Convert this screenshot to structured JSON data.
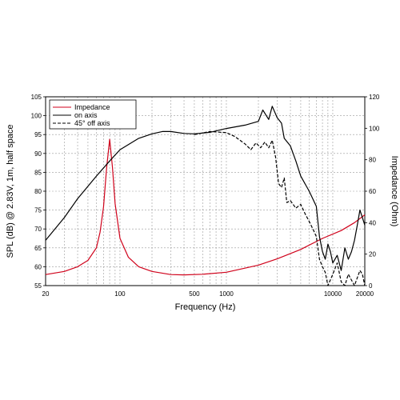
{
  "chart_data": {
    "type": "line",
    "xscale": "log",
    "xlabel": "Frequency (Hz)",
    "ylabel_left": "SPL (dB) @ 2.83V, 1m, half space",
    "ylabel_right": "Impedance (Ohm)",
    "xlim": [
      20,
      20000
    ],
    "ylim_left": [
      55,
      105
    ],
    "ylim_right": [
      0,
      120
    ],
    "x_ticks": [
      20,
      100,
      500,
      1000,
      10000,
      20000
    ],
    "x_tick_labels": [
      "20",
      "100",
      "500",
      "1000",
      "10000",
      "20000"
    ],
    "y_ticks_left": [
      55,
      60,
      65,
      70,
      75,
      80,
      85,
      90,
      95,
      100,
      105
    ],
    "y_tick_labels_left": [
      "55",
      "60",
      "65",
      "70",
      "75",
      "80",
      "85",
      "90",
      "95",
      "100",
      "105"
    ],
    "y_ticks_right": [
      0,
      20,
      40,
      60,
      80,
      100,
      120
    ],
    "y_tick_labels_right": [
      "0",
      "20",
      "40",
      "60",
      "80",
      "100",
      "120"
    ],
    "grid": true,
    "legend_position": "top-left",
    "series": [
      {
        "name": "Impedance",
        "axis": "right",
        "color": "#d0021b",
        "dash": "solid",
        "x": [
          20,
          30,
          40,
          50,
          60,
          65,
          70,
          75,
          80,
          85,
          90,
          100,
          120,
          150,
          200,
          300,
          400,
          600,
          1000,
          2000,
          3000,
          5000,
          8000,
          12000,
          16000,
          20000
        ],
        "y": [
          7,
          9,
          12,
          16,
          24,
          34,
          50,
          75,
          93,
          75,
          52,
          30,
          18,
          12,
          9,
          7,
          6.8,
          7.2,
          8.5,
          13,
          17,
          23,
          30,
          35,
          40,
          45
        ]
      },
      {
        "name": "on axis",
        "axis": "left",
        "color": "#000000",
        "dash": "solid",
        "x": [
          20,
          30,
          40,
          60,
          80,
          100,
          150,
          200,
          250,
          300,
          400,
          500,
          700,
          1000,
          1500,
          2000,
          2200,
          2500,
          2700,
          3000,
          3300,
          3500,
          4000,
          4500,
          5000,
          6000,
          7000,
          7500,
          8000,
          8500,
          9000,
          9500,
          10000,
          11000,
          12000,
          13000,
          14000,
          15000,
          16000,
          17000,
          18000,
          19000,
          20000
        ],
        "y": [
          67,
          73,
          78,
          84,
          88,
          91,
          94,
          95.2,
          95.8,
          95.8,
          95.3,
          95.2,
          95.6,
          96.6,
          97.5,
          98.5,
          101.5,
          99.0,
          102.5,
          99.5,
          98.0,
          94.0,
          92.0,
          88.0,
          84.0,
          80.0,
          76.0,
          68.0,
          64.0,
          62.0,
          66.0,
          64.0,
          61.0,
          63.0,
          59.0,
          65.0,
          62.0,
          64.0,
          67.0,
          71.0,
          75.0,
          73.0,
          71.0
        ]
      },
      {
        "name": "45° off axis",
        "axis": "left",
        "color": "#000000",
        "dash": "dashed",
        "x": [
          500,
          700,
          1000,
          1200,
          1500,
          1700,
          1900,
          2100,
          2300,
          2500,
          2700,
          2900,
          3100,
          3300,
          3500,
          3700,
          4000,
          4500,
          5000,
          5500,
          6000,
          6500,
          7000,
          7500,
          8000,
          8500,
          9000,
          10000,
          11000,
          12000,
          13000,
          14000,
          16000,
          18000,
          19000,
          20000
        ],
        "y": [
          95,
          95.8,
          95.5,
          94.5,
          92.5,
          91.0,
          92.8,
          91.5,
          93.0,
          91.5,
          93.5,
          89.0,
          82.0,
          81.0,
          83.5,
          77.0,
          77.5,
          75.5,
          76.5,
          74.0,
          72.0,
          70.0,
          68.0,
          62.0,
          60.0,
          58.5,
          55.0,
          58.0,
          61.0,
          56.0,
          55.0,
          58.0,
          55.0,
          59.0,
          58.0,
          55.0
        ]
      }
    ]
  }
}
